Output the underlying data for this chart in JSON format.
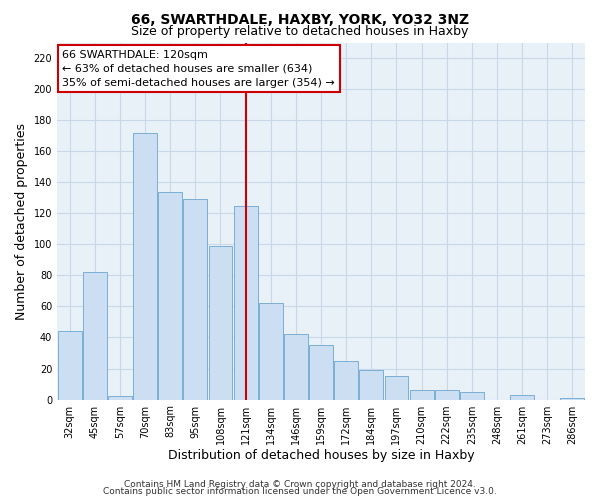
{
  "title": "66, SWARTHDALE, HAXBY, YORK, YO32 3NZ",
  "subtitle": "Size of property relative to detached houses in Haxby",
  "xlabel": "Distribution of detached houses by size in Haxby",
  "ylabel": "Number of detached properties",
  "categories": [
    "32sqm",
    "45sqm",
    "57sqm",
    "70sqm",
    "83sqm",
    "95sqm",
    "108sqm",
    "121sqm",
    "134sqm",
    "146sqm",
    "159sqm",
    "172sqm",
    "184sqm",
    "197sqm",
    "210sqm",
    "222sqm",
    "235sqm",
    "248sqm",
    "261sqm",
    "273sqm",
    "286sqm"
  ],
  "values": [
    44,
    82,
    2,
    172,
    134,
    129,
    99,
    125,
    62,
    42,
    35,
    25,
    19,
    15,
    6,
    6,
    5,
    0,
    3,
    0,
    1
  ],
  "bar_color": "#ccdff2",
  "bar_edge_color": "#7bafd4",
  "vline_x_index": 7,
  "vline_color": "#cc0000",
  "annotation_line1": "66 SWARTHDALE: 120sqm",
  "annotation_line2": "← 63% of detached houses are smaller (634)",
  "annotation_line3": "35% of semi-detached houses are larger (354) →",
  "annotation_box_color": "#ffffff",
  "annotation_box_edge_color": "#cc0000",
  "ylim": [
    0,
    230
  ],
  "yticks": [
    0,
    20,
    40,
    60,
    80,
    100,
    120,
    140,
    160,
    180,
    200,
    220
  ],
  "footer_line1": "Contains HM Land Registry data © Crown copyright and database right 2024.",
  "footer_line2": "Contains public sector information licensed under the Open Government Licence v3.0.",
  "background_color": "#ffffff",
  "plot_bg_color": "#e8f0f8",
  "grid_color": "#c8d8e8",
  "title_fontsize": 10,
  "subtitle_fontsize": 9,
  "axis_label_fontsize": 9,
  "tick_fontsize": 7,
  "footer_fontsize": 6.5
}
